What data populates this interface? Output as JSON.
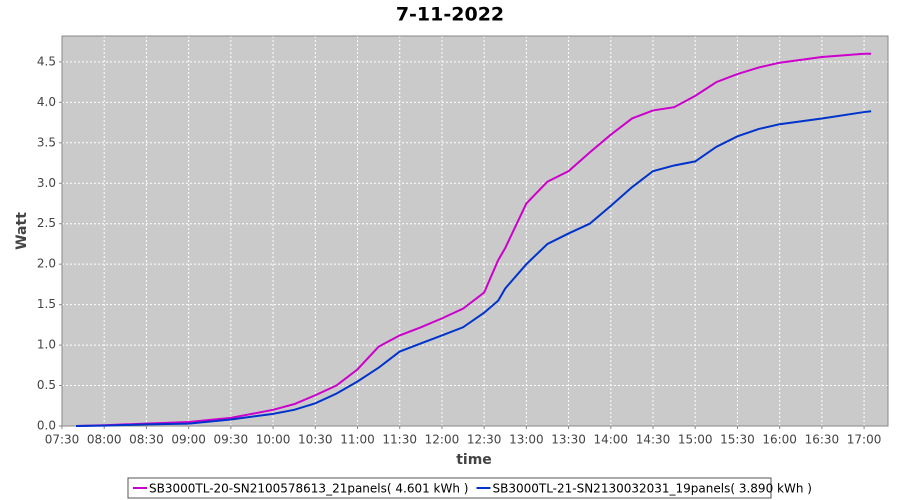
{
  "chart_data": {
    "type": "line",
    "title": "7-11-2022",
    "x_label": "time",
    "y_label": "Watt",
    "x": [
      "07:40",
      "08:00",
      "08:30",
      "09:00",
      "09:30",
      "10:00",
      "10:15",
      "10:30",
      "10:45",
      "11:00",
      "11:15",
      "11:30",
      "11:45",
      "12:00",
      "12:15",
      "12:30",
      "12:40",
      "12:45",
      "13:00",
      "13:15",
      "13:30",
      "13:45",
      "14:00",
      "14:15",
      "14:30",
      "14:45",
      "15:00",
      "15:15",
      "15:30",
      "15:45",
      "16:00",
      "16:30",
      "17:00",
      "17:05"
    ],
    "series": [
      {
        "name": "SB3000TL-20-SN2100578613_21panels( 4.601 kWh )",
        "color": "#cc00cc",
        "values": [
          0,
          0.01,
          0.03,
          0.05,
          0.1,
          0.2,
          0.27,
          0.38,
          0.5,
          0.7,
          0.98,
          1.12,
          1.22,
          1.33,
          1.45,
          1.65,
          2.05,
          2.2,
          2.75,
          3.02,
          3.15,
          3.38,
          3.6,
          3.8,
          3.9,
          3.94,
          4.08,
          4.25,
          4.35,
          4.43,
          4.49,
          4.56,
          4.6,
          4.6
        ]
      },
      {
        "name": "SB3000TL-21-SN2130032031_19panels( 3.890 kWh )",
        "color": "#0033cc",
        "values": [
          0,
          0.005,
          0.02,
          0.03,
          0.08,
          0.15,
          0.2,
          0.28,
          0.4,
          0.55,
          0.72,
          0.92,
          1.02,
          1.12,
          1.22,
          1.4,
          1.55,
          1.7,
          2.0,
          2.25,
          2.38,
          2.5,
          2.72,
          2.95,
          3.15,
          3.22,
          3.27,
          3.45,
          3.58,
          3.67,
          3.73,
          3.8,
          3.88,
          3.89
        ]
      }
    ],
    "xlim": [
      "07:30",
      "17:17"
    ],
    "xticks": [
      "07:30",
      "08:00",
      "08:30",
      "09:00",
      "09:30",
      "10:00",
      "10:30",
      "11:00",
      "11:30",
      "12:00",
      "12:30",
      "13:00",
      "13:30",
      "14:00",
      "14:30",
      "15:00",
      "15:30",
      "16:00",
      "16:30",
      "17:00"
    ],
    "ylim": [
      0,
      4.82
    ],
    "yticks": [
      {
        "value": 0,
        "label": "0.0"
      },
      0.5,
      {
        "value": 1,
        "label": "1.0"
      },
      1.5,
      {
        "value": 2,
        "label": "2.0"
      },
      2.5,
      {
        "value": 3,
        "label": "3.0"
      },
      3.5,
      {
        "value": 4,
        "label": "4.0"
      },
      4.5
    ],
    "grid": true
  }
}
